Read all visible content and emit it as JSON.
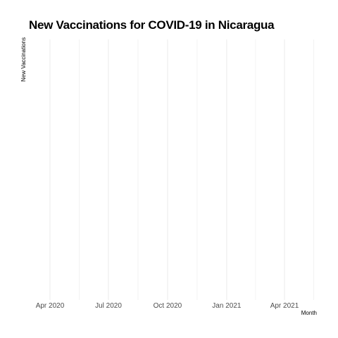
{
  "chart_data": {
    "type": "line",
    "title": "New Vaccinations for COVID-19 in Nicaragua",
    "xlabel": "Month",
    "ylabel": "New Vaccinations",
    "x_tick_labels": [
      "Apr 2020",
      "Jul 2020",
      "Oct 2020",
      "Jan 2021",
      "Apr 2021"
    ],
    "x_tick_dates": [
      "2020-04-01",
      "2020-07-01",
      "2020-10-01",
      "2021-01-01",
      "2021-04-01"
    ],
    "xlim": [
      "2020-04-01",
      "2021-06-01"
    ],
    "series": [],
    "grid": true,
    "colors": {
      "background": "#ffffff",
      "grid": "#ebebeb",
      "tick_text": "#4d4d4d",
      "title": "#000000"
    }
  }
}
